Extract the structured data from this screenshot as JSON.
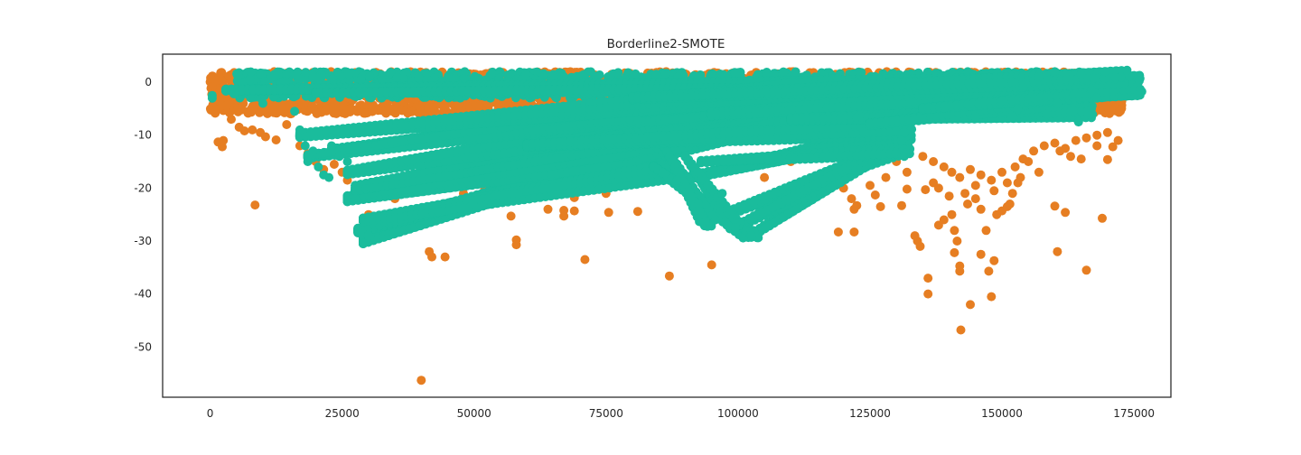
{
  "chart_data": {
    "type": "scatter",
    "title": "Borderline2-SMOTE",
    "xlabel": "",
    "ylabel": "",
    "xlim": [
      -9000,
      182000
    ],
    "ylim": [
      -59.5,
      5.3
    ],
    "xticks": [
      0,
      25000,
      50000,
      75000,
      100000,
      125000,
      150000,
      175000
    ],
    "yticks": [
      0,
      -10,
      -20,
      -30,
      -40,
      -50
    ],
    "grid": false,
    "legend": "none",
    "colors": {
      "majority": "#e67e22",
      "synthetic": "#1abc9c",
      "axes": "#262626"
    },
    "series": [
      {
        "class": "majority",
        "color": "#e67e22",
        "band": {
          "x_start": 0,
          "x_end": 172800,
          "y_top": 2,
          "y_bottom": -6
        },
        "points": [
          [
            1500,
            -11.3
          ],
          [
            2300,
            -12.2
          ],
          [
            2500,
            -11.0
          ],
          [
            4000,
            -7.0
          ],
          [
            5500,
            -8.5
          ],
          [
            6500,
            -9.2
          ],
          [
            8000,
            -9.0
          ],
          [
            8500,
            -23.2
          ],
          [
            9500,
            -9.5
          ],
          [
            10500,
            -10.3
          ],
          [
            12500,
            -10.9
          ],
          [
            14500,
            -8.0
          ],
          [
            17000,
            -12.0
          ],
          [
            18500,
            -13.5
          ],
          [
            20000,
            -15.0
          ],
          [
            21500,
            -16.5
          ],
          [
            22500,
            -13.8
          ],
          [
            23500,
            -15.5
          ],
          [
            25000,
            -17.0
          ],
          [
            26000,
            -18.5
          ],
          [
            27000,
            -22.0
          ],
          [
            28500,
            -28.3
          ],
          [
            30000,
            -25.0
          ],
          [
            35000,
            -22.0
          ],
          [
            40000,
            -56.3
          ],
          [
            41500,
            -32.0
          ],
          [
            42000,
            -33.0
          ],
          [
            44500,
            -33.0
          ],
          [
            48000,
            -21.0
          ],
          [
            52000,
            -20.0
          ],
          [
            57000,
            -25.3
          ],
          [
            58000,
            -29.8
          ],
          [
            58000,
            -30.7
          ],
          [
            62000,
            -21.0
          ],
          [
            64000,
            -24.0
          ],
          [
            67000,
            -24.2
          ],
          [
            67000,
            -25.3
          ],
          [
            69000,
            -24.3
          ],
          [
            69000,
            -21.8
          ],
          [
            70000,
            -20.0
          ],
          [
            71000,
            -33.5
          ],
          [
            73000,
            -20.3
          ],
          [
            74000,
            -19.0
          ],
          [
            75000,
            -21.0
          ],
          [
            75500,
            -24.6
          ],
          [
            78000,
            -18.8
          ],
          [
            81000,
            -24.4
          ],
          [
            85000,
            -18.0
          ],
          [
            87000,
            -36.6
          ],
          [
            88000,
            -19.0
          ],
          [
            95000,
            -34.5
          ],
          [
            98000,
            -16.0
          ],
          [
            100000,
            -15.8
          ],
          [
            105000,
            -18.0
          ],
          [
            110000,
            -15.0
          ],
          [
            112000,
            -13.0
          ],
          [
            119000,
            -28.3
          ],
          [
            120000,
            -20.0
          ],
          [
            121500,
            -22.0
          ],
          [
            122000,
            -24.0
          ],
          [
            122000,
            -28.3
          ],
          [
            122500,
            -23.3
          ],
          [
            125000,
            -19.5
          ],
          [
            126000,
            -21.3
          ],
          [
            127000,
            -23.5
          ],
          [
            128000,
            -18.0
          ],
          [
            131000,
            -23.3
          ],
          [
            132000,
            -20.2
          ],
          [
            133500,
            -29.0
          ],
          [
            134000,
            -30.0
          ],
          [
            134500,
            -31.0
          ],
          [
            135500,
            -20.3
          ],
          [
            136000,
            -37.0
          ],
          [
            136000,
            -40.0
          ],
          [
            137000,
            -19.0
          ],
          [
            138000,
            -27.0
          ],
          [
            139000,
            -26.0
          ],
          [
            140500,
            -25.0
          ],
          [
            141000,
            -28.0
          ],
          [
            141500,
            -30.0
          ],
          [
            141000,
            -32.2
          ],
          [
            142000,
            -34.7
          ],
          [
            142000,
            -35.7
          ],
          [
            142200,
            -46.8
          ],
          [
            143000,
            -21.0
          ],
          [
            143500,
            -23.0
          ],
          [
            144000,
            -42.0
          ],
          [
            145000,
            -22.0
          ],
          [
            146000,
            -24.0
          ],
          [
            146000,
            -32.5
          ],
          [
            147000,
            -28.0
          ],
          [
            147500,
            -35.7
          ],
          [
            148000,
            -40.5
          ],
          [
            148500,
            -33.7
          ],
          [
            149000,
            -25.0
          ],
          [
            150000,
            -24.3
          ],
          [
            151000,
            -23.5
          ],
          [
            151500,
            -23.0
          ],
          [
            152000,
            -21.0
          ],
          [
            153000,
            -19.0
          ],
          [
            155000,
            -15.0
          ],
          [
            157000,
            -17.0
          ],
          [
            160000,
            -23.4
          ],
          [
            160500,
            -32.0
          ],
          [
            161000,
            -13.0
          ],
          [
            162000,
            -24.6
          ],
          [
            163000,
            -14.0
          ],
          [
            165000,
            -14.5
          ],
          [
            166000,
            -35.5
          ],
          [
            168000,
            -12.0
          ],
          [
            169000,
            -25.7
          ],
          [
            170000,
            -14.6
          ],
          [
            171000,
            -12.2
          ],
          [
            172000,
            -11.0
          ],
          [
            135000,
            -14.0
          ],
          [
            137000,
            -15.0
          ],
          [
            139000,
            -16.0
          ],
          [
            140500,
            -17.0
          ],
          [
            142000,
            -18.0
          ],
          [
            144000,
            -16.5
          ],
          [
            146000,
            -17.5
          ],
          [
            148000,
            -18.5
          ],
          [
            150000,
            -17.0
          ],
          [
            152500,
            -16.0
          ],
          [
            154000,
            -14.5
          ],
          [
            156000,
            -13.0
          ],
          [
            158000,
            -12.0
          ],
          [
            160000,
            -11.5
          ],
          [
            162000,
            -12.5
          ],
          [
            164000,
            -11.0
          ],
          [
            166000,
            -10.5
          ],
          [
            168000,
            -10.0
          ],
          [
            170000,
            -9.5
          ],
          [
            138000,
            -20.0
          ],
          [
            140000,
            -21.5
          ],
          [
            145000,
            -19.5
          ],
          [
            148500,
            -20.5
          ],
          [
            151000,
            -19.0
          ],
          [
            153500,
            -18.0
          ],
          [
            130000,
            -15.0
          ],
          [
            132000,
            -17.0
          ],
          [
            129000,
            -12.0
          ],
          [
            125000,
            -13.0
          ]
        ]
      },
      {
        "class": "synthetic",
        "color": "#1abc9c",
        "band": {
          "x_start": 5000,
          "x_end": 170000,
          "y_top": 2,
          "y_bottom": -3
        },
        "points": [
          [
            400,
            -2.5
          ],
          [
            400,
            -3.0
          ],
          [
            4500,
            -2.2
          ],
          [
            10000,
            -4.0
          ],
          [
            16000,
            -5.5
          ],
          [
            17000,
            -9.0
          ],
          [
            18000,
            -12.0
          ],
          [
            18500,
            -15.0
          ],
          [
            19500,
            -13.0
          ],
          [
            20500,
            -16.0
          ],
          [
            21500,
            -17.5
          ],
          [
            22500,
            -18.0
          ],
          [
            23000,
            -12.0
          ],
          [
            24500,
            -14.0
          ],
          [
            26000,
            -15.0
          ],
          [
            27500,
            -22.0
          ],
          [
            28500,
            -28.5
          ],
          [
            29000,
            -30.5
          ],
          [
            30000,
            -29.0
          ],
          [
            93500,
            -26.5
          ],
          [
            99500,
            -27.5
          ],
          [
            102500,
            -29.0
          ],
          [
            92500,
            -23.0
          ],
          [
            97000,
            -21.0
          ],
          [
            88500,
            -18.5
          ],
          [
            131500,
            -9.5
          ],
          [
            131000,
            -11.0
          ],
          [
            131500,
            -14.0
          ],
          [
            145000,
            -6.5
          ],
          [
            152000,
            -6.5
          ],
          [
            153000,
            -5.0
          ],
          [
            158500,
            -6.0
          ],
          [
            160500,
            -4.0
          ],
          [
            163500,
            -5.5
          ],
          [
            164500,
            -7.5
          ],
          [
            167000,
            -1.5
          ],
          [
            168000,
            -3.0
          ],
          [
            169500,
            2.0
          ],
          [
            160000,
            2.0
          ],
          [
            165000,
            1.5
          ],
          [
            157000,
            1.0
          ],
          [
            154000,
            -1.0
          ],
          [
            150000,
            -3.5
          ]
        ],
        "strands": [
          [
            [
              3000,
              -1.5
            ],
            [
              175000,
              0.5
            ],
            [
              1.5
            ],
            [
              30
            ]
          ],
          [
            [
              20000,
              -2.0
            ],
            [
              150000,
              -1.0
            ],
            [
              1.0
            ],
            [
              22
            ]
          ],
          [
            [
              29000,
              -30.0
            ],
            [
              93000,
              -8.0
            ],
            [
              3.5
            ],
            [
              40
            ]
          ],
          [
            [
              28000,
              -28.0
            ],
            [
              120000,
              -4.0
            ],
            [
              3.0
            ],
            [
              30
            ]
          ],
          [
            [
              26000,
              -22.0
            ],
            [
              80000,
              -13.0
            ],
            [
              4.0
            ],
            [
              20
            ]
          ],
          [
            [
              27500,
              -20.0
            ],
            [
              130000,
              -2.0
            ],
            [
              3.5
            ],
            [
              30
            ]
          ],
          [
            [
              29000,
              -26.0
            ],
            [
              86000,
              -17.0
            ],
            [
              2.5
            ],
            [
              20
            ]
          ],
          [
            [
              26000,
              -17.0
            ],
            [
              90000,
              -7.0
            ],
            [
              3.0
            ],
            [
              26
            ]
          ],
          [
            [
              23000,
              -13.0
            ],
            [
              110000,
              -3.0
            ],
            [
              3.0
            ],
            [
              26
            ]
          ],
          [
            [
              18500,
              -14.0
            ],
            [
              80000,
              -6.0
            ],
            [
              2.5
            ],
            [
              20
            ]
          ],
          [
            [
              17000,
              -10.0
            ],
            [
              120000,
              -1.0
            ],
            [
              3.0
            ],
            [
              26
            ]
          ],
          [
            [
              102500,
              -29.0
            ],
            [
              131500,
              -10.0
            ],
            [
              2.0
            ],
            [
              18
            ]
          ],
          [
            [
              93500,
              -26.5
            ],
            [
              131500,
              -12.0
            ],
            [
              2.0
            ],
            [
              18
            ]
          ],
          [
            [
              99500,
              -27.5
            ],
            [
              128000,
              -13.0
            ],
            [
              2.0
            ],
            [
              16
            ]
          ],
          [
            [
              88500,
              -18.5
            ],
            [
              130000,
              -9.5
            ],
            [
              2.0
            ],
            [
              16
            ]
          ],
          [
            [
              84000,
              -16.0
            ],
            [
              103000,
              -29.0
            ],
            [
              1.2
            ],
            [
              14
            ]
          ],
          [
            [
              90000,
              -14.0
            ],
            [
              100000,
              -27.5
            ],
            [
              1.2
            ],
            [
              12
            ]
          ],
          [
            [
              86000,
              -12.0
            ],
            [
              94000,
              -26.5
            ],
            [
              1.2
            ],
            [
              12
            ]
          ],
          [
            [
              93000,
              -15.0
            ],
            [
              131500,
              -13.0
            ],
            [
              1.5
            ],
            [
              16
            ]
          ],
          [
            [
              60000,
              -12.0
            ],
            [
              131500,
              -9.0
            ],
            [
              2.5
            ],
            [
              20
            ]
          ],
          [
            [
              95000,
              -6.0
            ],
            [
              175000,
              -1.0
            ],
            [
              2.5
            ],
            [
              20
            ]
          ],
          [
            [
              110000,
              -7.0
            ],
            [
              166000,
              -5.5
            ],
            [
              2.0
            ],
            [
              16
            ]
          ],
          [
            [
              125000,
              -8.0
            ],
            [
              160000,
              -4.0
            ],
            [
              1.8
            ],
            [
              14
            ]
          ],
          [
            [
              135000,
              -5.0
            ],
            [
              170000,
              -2.0
            ],
            [
              1.5
            ],
            [
              12
            ]
          ],
          [
            [
              80000,
              -3.0
            ],
            [
              173000,
              1.0
            ],
            [
              2.0
            ],
            [
              20
            ]
          ]
        ]
      }
    ]
  }
}
